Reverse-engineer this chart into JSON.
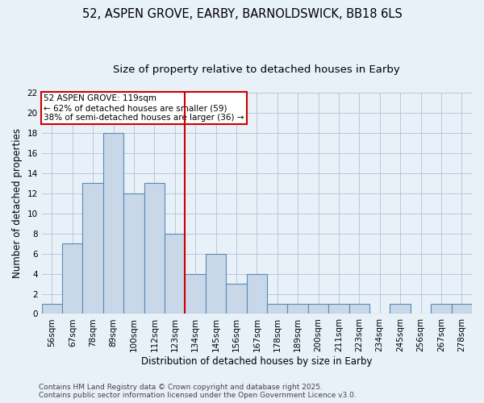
{
  "title_line1": "52, ASPEN GROVE, EARBY, BARNOLDSWICK, BB18 6LS",
  "title_line2": "Size of property relative to detached houses in Earby",
  "xlabel": "Distribution of detached houses by size in Earby",
  "ylabel": "Number of detached properties",
  "bin_labels": [
    "56sqm",
    "67sqm",
    "78sqm",
    "89sqm",
    "100sqm",
    "112sqm",
    "123sqm",
    "134sqm",
    "145sqm",
    "156sqm",
    "167sqm",
    "178sqm",
    "189sqm",
    "200sqm",
    "211sqm",
    "223sqm",
    "234sqm",
    "245sqm",
    "256sqm",
    "267sqm",
    "278sqm"
  ],
  "bin_values": [
    1,
    7,
    13,
    18,
    12,
    13,
    8,
    4,
    6,
    3,
    4,
    1,
    1,
    1,
    1,
    1,
    0,
    1,
    0,
    1,
    1
  ],
  "bar_color": "#c8d8e8",
  "bar_edge_color": "#5a8ab5",
  "grid_color": "#b0c4d8",
  "background_color": "#e8f0f8",
  "vline_color": "#cc0000",
  "annotation_text": "52 ASPEN GROVE: 119sqm\n← 62% of detached houses are smaller (59)\n38% of semi-detached houses are larger (36) →",
  "annotation_box_color": "#ffffff",
  "annotation_box_edge": "#cc0000",
  "ylim": [
    0,
    22
  ],
  "yticks": [
    0,
    2,
    4,
    6,
    8,
    10,
    12,
    14,
    16,
    18,
    20,
    22
  ],
  "footer_text": "Contains HM Land Registry data © Crown copyright and database right 2025.\nContains public sector information licensed under the Open Government Licence v3.0.",
  "title_fontsize": 10.5,
  "subtitle_fontsize": 9.5,
  "axis_label_fontsize": 8.5,
  "tick_fontsize": 7.5,
  "annotation_fontsize": 7.5,
  "footer_fontsize": 6.5
}
